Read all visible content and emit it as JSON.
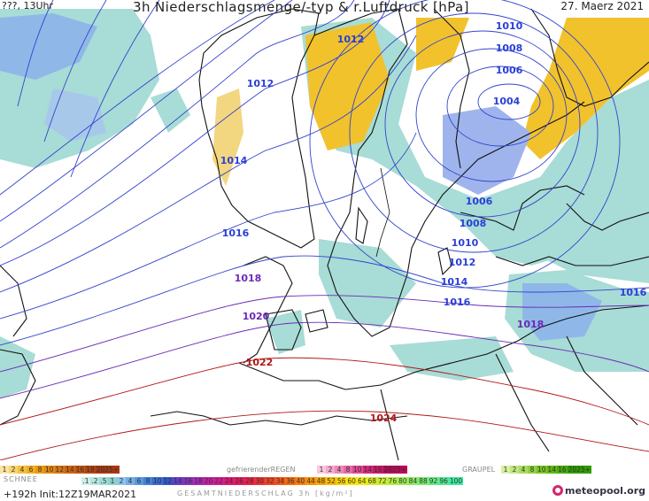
{
  "header": {
    "left": "???, 13Uhr",
    "title": "3h Niederschlagsmenge/-typ & r.Luftdruck [hPa]",
    "date": "27. Maerz 2021"
  },
  "isobar_labels": [
    {
      "text": "1012",
      "color": "#2a3fd6"
    },
    {
      "text": "1010",
      "color": "#2a3fd6"
    },
    {
      "text": "1008",
      "color": "#2a3fd6"
    },
    {
      "text": "1006",
      "color": "#2a3fd6"
    },
    {
      "text": "1004",
      "color": "#2a3fd6"
    },
    {
      "text": "1012",
      "color": "#2a3fd6"
    },
    {
      "text": "1014",
      "color": "#2a3fd6"
    },
    {
      "text": "1016",
      "color": "#2a3fd6"
    },
    {
      "text": "1006",
      "color": "#2a3fd6"
    },
    {
      "text": "1008",
      "color": "#2a3fd6"
    },
    {
      "text": "1010",
      "color": "#2a3fd6"
    },
    {
      "text": "1012",
      "color": "#2a3fd6"
    },
    {
      "text": "1014",
      "color": "#2a3fd6"
    },
    {
      "text": "1016",
      "color": "#2a3fd6"
    },
    {
      "text": "1018",
      "color": "#6a2ab8"
    },
    {
      "text": "1018",
      "color": "#6a2ab8"
    },
    {
      "text": "1016",
      "color": "#2a3fd6"
    },
    {
      "text": "1020",
      "color": "#6a2ab8"
    },
    {
      "text": "1022",
      "color": "#b01818"
    },
    {
      "text": "1024",
      "color": "#b01818"
    }
  ],
  "legend": {
    "rain_scale": [
      "1",
      "2",
      "4",
      "6",
      "8",
      "10",
      "12",
      "14",
      "16",
      "18",
      "2025+"
    ],
    "snow_label": "SCHNEE",
    "freezing_rain_label": "gefrierenderREGEN",
    "freezing_rain_scale": [
      "1",
      "2",
      "4",
      "8",
      "10",
      "14",
      "16",
      "2025+"
    ],
    "graupel_label": "GRAUPEL",
    "graupel_scale": [
      "1",
      "2",
      "4",
      "8",
      "10",
      "14",
      "16",
      "2025+"
    ],
    "total_scale": [
      ".1",
      ".2",
      ".5",
      "1",
      "2",
      "4",
      "6",
      "8",
      "10",
      "12",
      "14",
      "16",
      "18",
      "20",
      "22",
      "24",
      "26",
      "28",
      "30",
      "32",
      "34",
      "36",
      "40",
      "44",
      "48",
      "52",
      "56",
      "60",
      "64",
      "68",
      "72",
      "76",
      "80",
      "84",
      "88",
      "92",
      "96",
      "100"
    ],
    "total_label": "GESAMTNIEDERSCHLAG 3h [kg/m²]"
  },
  "footer": {
    "run": "+192h  Init:12Z19MAR2021",
    "logo": "meteopool.org"
  }
}
